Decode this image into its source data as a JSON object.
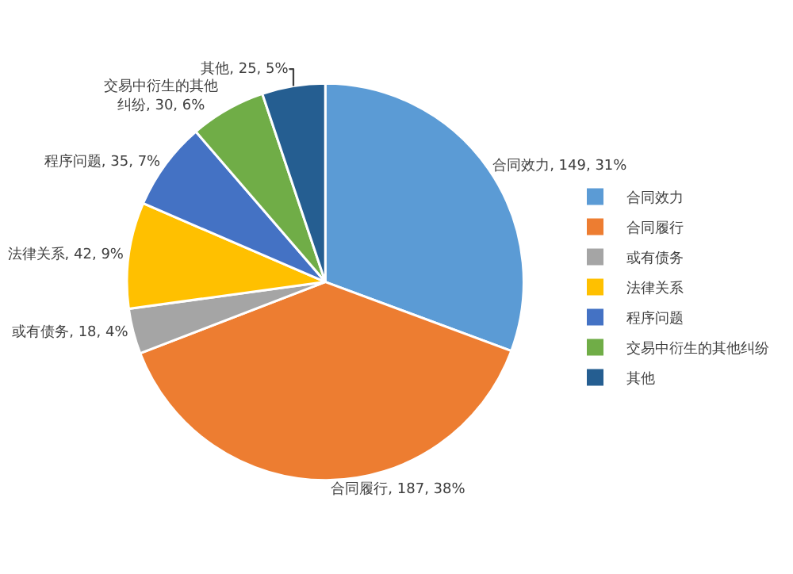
{
  "chart_data": {
    "type": "pie",
    "categories": [
      "合同效力",
      "合同履行",
      "或有债务",
      "法律关系",
      "程序问题",
      "交易中衍生的其他纠纷",
      "其他"
    ],
    "values": [
      149,
      187,
      18,
      42,
      35,
      30,
      25
    ],
    "colors": [
      "#5b9bd5",
      "#ed7d31",
      "#a5a5a5",
      "#ffc000",
      "#4472c4",
      "#70ad47",
      "#255e91"
    ],
    "value_labels": [
      "合同效力, 149, 31%",
      "合同履行, 187, 38%",
      "或有债务, 18, 4%",
      "法律关系, 42, 9%",
      "程序问题, 35, 7%",
      "交易中衍生的其他纠纷, 30, 6%",
      "其他, 25, 5%"
    ],
    "legend": "right"
  }
}
